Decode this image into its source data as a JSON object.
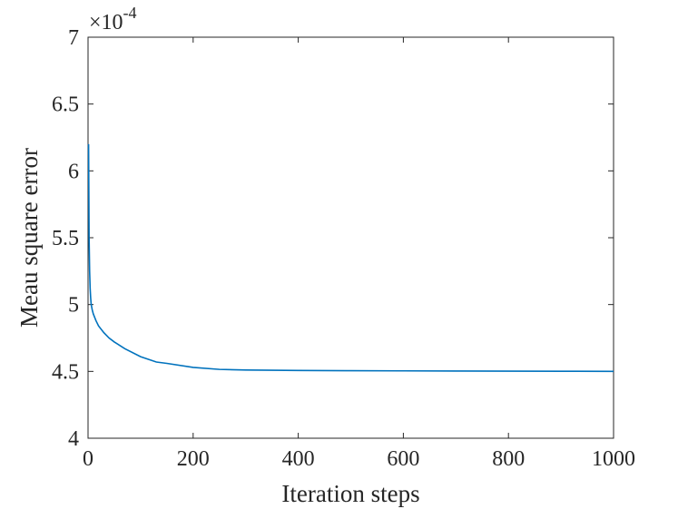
{
  "chart_data": {
    "type": "line",
    "xlabel": "Iteration steps",
    "ylabel": "Meau square error",
    "xlim": [
      0,
      1000
    ],
    "ylim": [
      4,
      7
    ],
    "y_multiplier": {
      "base": "×10",
      "exponent": "-4"
    },
    "x_ticks": [
      0,
      200,
      400,
      600,
      800,
      1000
    ],
    "y_ticks": [
      4,
      4.5,
      5,
      5.5,
      6,
      6.5,
      7
    ],
    "y_tick_labels": [
      "4",
      "4.5",
      "5",
      "5.5",
      "6",
      "6.5",
      "7"
    ],
    "grid": false,
    "series": [
      {
        "color": "#0072BD",
        "x": [
          1,
          2,
          3,
          4,
          5,
          6,
          8,
          10,
          15,
          20,
          30,
          40,
          50,
          70,
          100,
          130,
          150,
          200,
          250,
          300,
          400,
          500,
          600,
          700,
          800,
          900,
          1000
        ],
        "y": [
          6.2,
          5.5,
          5.25,
          5.12,
          5.05,
          5.0,
          4.96,
          4.93,
          4.88,
          4.84,
          4.79,
          4.75,
          4.72,
          4.67,
          4.61,
          4.57,
          4.56,
          4.53,
          4.515,
          4.51,
          4.507,
          4.505,
          4.504,
          4.503,
          4.502,
          4.501,
          4.5
        ]
      }
    ]
  }
}
